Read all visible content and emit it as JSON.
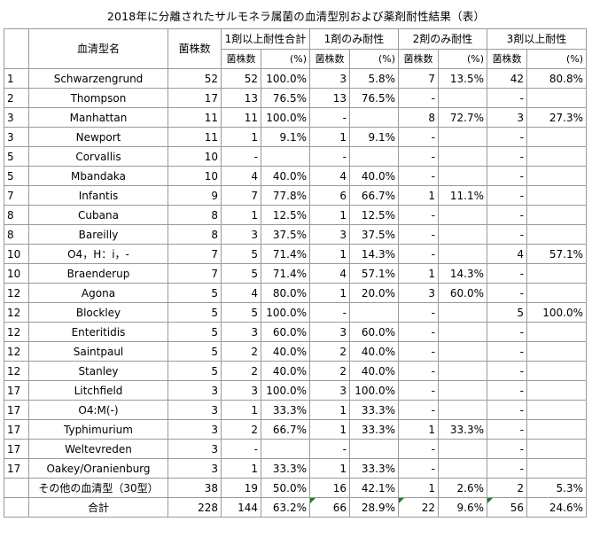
{
  "title": "2018年に分離されたサルモネラ属菌の血清型別および薬剤耐性結果（表）",
  "headers": {
    "serotype": "血清型名",
    "strain_count": "菌株数",
    "resist_1plus": "1剤以上耐性合計",
    "resist_1only": "1剤のみ耐性",
    "resist_2only": "2剤のみ耐性",
    "resist_3plus": "3剤以上耐性",
    "sub_count": "菌株数",
    "sub_pct": "(%)"
  },
  "rows": [
    [
      "1",
      "Schwarzengrund",
      "52",
      "52",
      "100.0%",
      "3",
      "5.8%",
      "7",
      "13.5%",
      "42",
      "80.8%"
    ],
    [
      "2",
      "Thompson",
      "17",
      "13",
      "76.5%",
      "13",
      "76.5%",
      "-",
      "",
      "-",
      ""
    ],
    [
      "3",
      "Manhattan",
      "11",
      "11",
      "100.0%",
      "-",
      "",
      "8",
      "72.7%",
      "3",
      "27.3%"
    ],
    [
      "3",
      "Newport",
      "11",
      "1",
      "9.1%",
      "1",
      "9.1%",
      "-",
      "",
      "-",
      ""
    ],
    [
      "5",
      "Corvallis",
      "10",
      "-",
      "",
      "-",
      "",
      "-",
      "",
      "-",
      ""
    ],
    [
      "5",
      "Mbandaka",
      "10",
      "4",
      "40.0%",
      "4",
      "40.0%",
      "-",
      "",
      "-",
      ""
    ],
    [
      "7",
      "Infantis",
      "9",
      "7",
      "77.8%",
      "6",
      "66.7%",
      "1",
      "11.1%",
      "-",
      ""
    ],
    [
      "8",
      "Cubana",
      "8",
      "1",
      "12.5%",
      "1",
      "12.5%",
      "-",
      "",
      "-",
      ""
    ],
    [
      "8",
      "Bareilly",
      "8",
      "3",
      "37.5%",
      "3",
      "37.5%",
      "-",
      "",
      "-",
      ""
    ],
    [
      "10",
      "O4，H：i，-",
      "7",
      "5",
      "71.4%",
      "1",
      "14.3%",
      "-",
      "",
      "4",
      "57.1%"
    ],
    [
      "10",
      "Braenderup",
      "7",
      "5",
      "71.4%",
      "4",
      "57.1%",
      "1",
      "14.3%",
      "-",
      ""
    ],
    [
      "12",
      "Agona",
      "5",
      "4",
      "80.0%",
      "1",
      "20.0%",
      "3",
      "60.0%",
      "-",
      ""
    ],
    [
      "12",
      "Blockley",
      "5",
      "5",
      "100.0%",
      "-",
      "",
      "-",
      "",
      "5",
      "100.0%"
    ],
    [
      "12",
      "Enteritidis",
      "5",
      "3",
      "60.0%",
      "3",
      "60.0%",
      "-",
      "",
      "-",
      ""
    ],
    [
      "12",
      "Saintpaul",
      "5",
      "2",
      "40.0%",
      "2",
      "40.0%",
      "-",
      "",
      "-",
      ""
    ],
    [
      "12",
      "Stanley",
      "5",
      "2",
      "40.0%",
      "2",
      "40.0%",
      "-",
      "",
      "-",
      ""
    ],
    [
      "17",
      "Litchfield",
      "3",
      "3",
      "100.0%",
      "3",
      "100.0%",
      "-",
      "",
      "-",
      ""
    ],
    [
      "17",
      "O4:M(-)",
      "3",
      "1",
      "33.3%",
      "1",
      "33.3%",
      "-",
      "",
      "-",
      ""
    ],
    [
      "17",
      "Typhimurium",
      "3",
      "2",
      "66.7%",
      "1",
      "33.3%",
      "1",
      "33.3%",
      "-",
      ""
    ],
    [
      "17",
      "Weltevreden",
      "3",
      "-",
      "",
      "-",
      "",
      "-",
      "",
      "-",
      ""
    ],
    [
      "17",
      "Oakey/Oranienburg",
      "3",
      "1",
      "33.3%",
      "1",
      "33.3%",
      "-",
      "",
      "-",
      ""
    ]
  ],
  "other_row": [
    "",
    "その他の血清型（30型）",
    "38",
    "19",
    "50.0%",
    "16",
    "42.1%",
    "1",
    "2.6%",
    "2",
    "5.3%"
  ],
  "total_row": [
    "",
    "合計",
    "228",
    "144",
    "63.2%",
    "66",
    "28.9%",
    "22",
    "9.6%",
    "56",
    "24.6%"
  ],
  "colors": {
    "grid": "#9a9a9a",
    "error_marker": "#1e7b34"
  }
}
